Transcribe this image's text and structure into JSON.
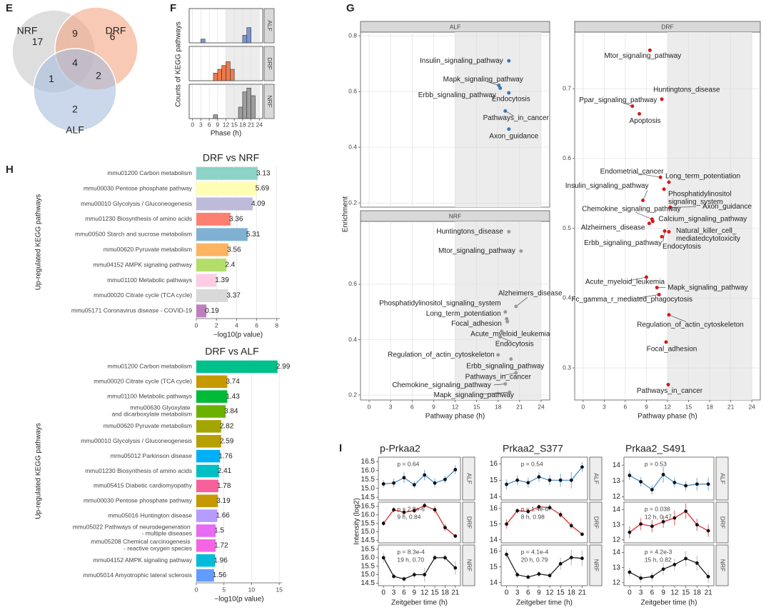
{
  "panels": [
    "E",
    "F",
    "G",
    "H",
    "I"
  ],
  "chart_data": [
    {
      "type": "venn",
      "sets": [
        {
          "name": "NRF",
          "color": "#c8c8c8"
        },
        {
          "name": "DRF",
          "color": "#f4a582"
        },
        {
          "name": "ALF",
          "color": "#a9bcdc"
        }
      ],
      "regions": [
        {
          "sets": [
            "NRF"
          ],
          "value": 17
        },
        {
          "sets": [
            "DRF"
          ],
          "value": 6
        },
        {
          "sets": [
            "ALF"
          ],
          "value": 2
        },
        {
          "sets": [
            "NRF",
            "DRF"
          ],
          "value": 9
        },
        {
          "sets": [
            "NRF",
            "ALF"
          ],
          "value": 1
        },
        {
          "sets": [
            "DRF",
            "ALF"
          ],
          "value": 2
        },
        {
          "sets": [
            "NRF",
            "DRF",
            "ALF"
          ],
          "value": 4
        }
      ]
    },
    {
      "type": "histogram",
      "xlabel": "Phase (h)",
      "ylabel": "Counts of KEGG pathways",
      "xlim": [
        -1.2,
        25.2
      ],
      "xticks": [
        0,
        3,
        6,
        9,
        12,
        15,
        18,
        21,
        24
      ],
      "ylim": [
        0,
        9
      ],
      "shaded": [
        12,
        24
      ],
      "bins": [
        0,
        1.5,
        3,
        4.5,
        6,
        7.5,
        9,
        10.5,
        12,
        13.5,
        15,
        16.5,
        18,
        19.5,
        21,
        22.5,
        24
      ],
      "facets": [
        {
          "name": "ALF",
          "color": "#7b96d4",
          "counts": [
            0,
            0,
            1,
            0,
            0,
            0,
            0,
            0,
            0,
            0,
            0,
            0,
            2,
            4,
            0,
            0
          ]
        },
        {
          "name": "DRF",
          "color": "#ee7a4a",
          "counts": [
            0,
            0,
            0,
            0,
            0,
            2,
            3,
            4,
            5,
            3,
            0,
            0,
            0,
            0,
            0,
            0
          ]
        },
        {
          "name": "NRF",
          "color": "#9e9e9e",
          "counts": [
            0,
            0,
            0,
            0,
            0,
            1,
            0,
            0,
            0,
            0,
            0,
            3,
            7,
            8,
            6,
            0
          ]
        }
      ]
    },
    {
      "type": "scatter",
      "xlabel": "Pathway phase (h)",
      "ylabel": "Enrichment",
      "xlim": [
        -1.2,
        25.2
      ],
      "xticks": [
        0,
        3,
        6,
        9,
        12,
        15,
        18,
        21,
        24
      ],
      "shaded": [
        12,
        24
      ],
      "facets": [
        {
          "name": "ALF",
          "color": "#3a78b8",
          "ylim": [
            0.185,
            0.813
          ],
          "yticks": [
            0.2,
            0.4,
            0.6,
            0.8
          ],
          "labels": [
            "Insulin_signaling_pathway",
            "Mapk_signaling_pathway",
            "Erbb_signaling_pathway",
            "Endocytosis",
            "Pathways_in_cancer",
            "Axon_guidance"
          ],
          "x": [
            19.5,
            18.1,
            18.3,
            19.5,
            19.0,
            19.5
          ],
          "y": [
            0.71,
            0.622,
            0.612,
            0.595,
            0.53,
            0.465
          ]
        },
        {
          "name": "DRF",
          "color": "#d7191c",
          "ylim": [
            0.254,
            0.781
          ],
          "yticks": [
            0.3,
            0.4,
            0.5,
            0.6,
            0.7
          ],
          "labels": [
            "Mtor_signaling_pathway",
            "Huntingtons_disease",
            "Ppar_signaling_pathway",
            "Apoptosis",
            "Endometrial_cancer",
            "Long_term_potentiation",
            "Insulin_signaling_pathway",
            "Phosphatidylinositol signaling_system",
            "Axon_guidance",
            "Chemokine_signaling_pathway",
            "Calcium_signaling_pathway",
            "Natural_killer_cell_ mediatedcytotoxicity",
            "Alzheimers_disease",
            "Erbb_signaling_pathway",
            "Endocytosis",
            "Acute_myeloid_leukemia",
            "Mapk_signaling_pathway",
            "Fc_gamma_r_mediated_phagocytosis",
            "Regulation_of_actin_cytoskeleton",
            "Focal_adhesion",
            "Pathways_in_cancer"
          ],
          "x": [
            9.5,
            11.2,
            7.0,
            8.0,
            11.0,
            12.2,
            8.5,
            11.5,
            12.4,
            9.8,
            9.9,
            12.2,
            9.4,
            11.2,
            11.6,
            9.0,
            10.5,
            10.8,
            12.2,
            11.8,
            12.1
          ],
          "y": [
            0.755,
            0.685,
            0.675,
            0.664,
            0.573,
            0.566,
            0.54,
            0.556,
            0.53,
            0.513,
            0.51,
            0.495,
            0.507,
            0.488,
            0.496,
            0.43,
            0.415,
            0.405,
            0.376,
            0.337,
            0.276
          ]
        },
        {
          "name": "NRF",
          "color": "#9a9a9a",
          "ylim": [
            0.182,
            0.827
          ],
          "yticks": [
            0.2,
            0.4,
            0.6
          ],
          "labels": [
            "Huntingtons_disease",
            "Mtor_signaling_pathway",
            "Alzheimers_disease",
            "Phosphatidylinositol_signaling_system",
            "Long_term_potentiation",
            "Focal_adhesion",
            "Acute_myeloid_leukemia",
            "Endocytosis",
            "Regulation_of_actin_cytoskeleton",
            "Erbb_signaling_pathway",
            "Pathways_in_cancer",
            "Chemokine_signaling_pathway",
            "Mapk_signaling_pathway"
          ],
          "x": [
            19.5,
            21.2,
            20.5,
            19.0,
            19.2,
            19.3,
            18.5,
            18.3,
            18.0,
            19.8,
            20.5,
            19.0,
            19.6
          ],
          "y": [
            0.79,
            0.72,
            0.52,
            0.5,
            0.475,
            0.465,
            0.43,
            0.41,
            0.345,
            0.33,
            0.28,
            0.24,
            0.21
          ]
        }
      ]
    },
    {
      "type": "bar",
      "title": "DRF vs NRF",
      "xlabel": "−log10(p value)",
      "ylabel": "Up-regulated KEGG pathways",
      "xlim": [
        0,
        8.3
      ],
      "xticks": [
        0,
        2,
        4,
        6,
        8
      ],
      "categories": [
        "mmu01200 Carbon metabolism",
        "mmu00030 Pentose phosphate pathway",
        "mmu00010 Glycolysis / Gluconeogenesis",
        "mmu01230 Biosynthesis of amino acids",
        "mmu00500 Starch and sucrose metabolism",
        "mmu00620 Pyruvate metabolism",
        "mmu04152 AMPK signaling pathway",
        "mmu01100 Metabolic pathways",
        "mmu00020 Citrate cycle (TCA cycle)",
        "mmu05171 Coronavirus disease - COVID-19"
      ],
      "values": [
        6.1,
        6.0,
        5.6,
        3.4,
        5.1,
        3.2,
        3.0,
        2.0,
        3.15,
        1.0
      ],
      "annotations": [
        3.13,
        5.69,
        4.09,
        3.36,
        5.31,
        3.56,
        2.4,
        1.39,
        3.37,
        0.19
      ],
      "colors": [
        "#8dd3c7",
        "#ffffb3",
        "#bebada",
        "#fb8072",
        "#80b1d3",
        "#fdb462",
        "#b3de69",
        "#fccde5",
        "#d9d9d9",
        "#bc80bd"
      ]
    },
    {
      "type": "bar",
      "title": "DRF vs ALF",
      "xlabel": "−log10(p value)",
      "ylabel": "Up-regulated KEGG pathways",
      "xlim": [
        0,
        15.5
      ],
      "xticks": [
        0,
        5,
        10,
        15
      ],
      "categories": [
        "mmu01200 Carbon metabolism",
        "mmu00020 Citrate cycle (TCA cycle)",
        "mmu01100 Metabolic pathways",
        "mmu00630 Glyoxylate and dicarboxylate metabolism",
        "mmu00620 Pyruvate metabolism",
        "mmu00010 Glycolysis / Gluconeogenesis",
        "mmu05012 Parkinson disease",
        "mmu01230 Biosynthesis of amino acids",
        "mmu05415 Diabetic cardiomyopathy",
        "mmu00030 Pentose phosphate pathway",
        "mmu05016 Huntington disease",
        "mmu05022 Pathways of neurodegeneration - multiple diseases",
        "mmu05208 Chemical carcinogenesis - reactive oxygen species",
        "mmu04152 AMPK signaling pathway",
        "mmu05014 Amyotrophic lateral sclerosis"
      ],
      "values": [
        14.7,
        5.6,
        5.6,
        5.3,
        4.5,
        4.5,
        4.3,
        4.1,
        4.0,
        3.9,
        3.8,
        3.5,
        3.5,
        3.4,
        3.2
      ],
      "annotations": [
        2.99,
        3.74,
        1.43,
        3.84,
        2.82,
        2.59,
        1.76,
        2.41,
        1.78,
        3.19,
        1.66,
        1.5,
        1.72,
        1.96,
        1.56
      ],
      "colors": [
        "#00c08b",
        "#c49a00",
        "#00ba38",
        "#6bb100",
        "#a3a500",
        "#b79f00",
        "#00b0f6",
        "#00bfc4",
        "#f8609c",
        "#c59900",
        "#b79cff",
        "#e76bf3",
        "#f564e3",
        "#00bcd8",
        "#619cff"
      ]
    },
    {
      "type": "line",
      "xlabel": "Zeitgeber time (h)",
      "ylabel": "Intensity (log2)",
      "x": [
        0,
        3,
        6,
        9,
        12,
        15,
        18,
        21
      ],
      "xlim": [
        -1.5,
        22.5
      ],
      "xticks": [
        0,
        3,
        6,
        9,
        12,
        15,
        18,
        21
      ],
      "columns": [
        {
          "title": "p-Prkaa2",
          "ylim": [
            14.35,
            16.75
          ],
          "yticks": [
            14.5,
            {
              "value": 15,
              "label": "15.0"
            },
            15.5,
            {
              "value": 16,
              "label": "16.0"
            },
            16.5
          ],
          "rows": [
            {
              "name": "ALF",
              "color": "#3a87c8",
              "values": [
                15.25,
                15.3,
                15.6,
                15.2,
                15.75,
                15.3,
                15.5,
                16.05
              ],
              "errors": [
                0.2,
                0.25,
                0.3,
                0.2,
                0.3,
                0.25,
                0.2,
                0.25
              ],
              "annotations": [
                "p = 0.64"
              ]
            },
            {
              "name": "DRF",
              "color": "#d7191c",
              "values": [
                15.5,
                16.3,
                16.15,
                16.25,
                16.55,
                16.3,
                15.25,
                14.75
              ],
              "errors": [
                0.15,
                0.15,
                0.2,
                0.15,
                0.15,
                0.2,
                0.2,
                0.1
              ],
              "annotations": [
                "p = 2.9e-6",
                "9 h, 0.84"
              ]
            },
            {
              "name": "NRF",
              "color": "#111111",
              "values": [
                16.0,
                14.9,
                14.75,
                15.0,
                15.0,
                16.0,
                16.0,
                15.4
              ],
              "errors": [
                0.3,
                0.15,
                0.15,
                0.2,
                0.4,
                0.2,
                0.2,
                0.4
              ],
              "annotations": [
                "p = 8.3e-4",
                "19 h, 0.70"
              ]
            }
          ]
        },
        {
          "title": "Prkaa2_S377",
          "ylim": [
            13.8,
            16.4
          ],
          "yticks": [
            14,
            15,
            16
          ],
          "rows": [
            {
              "name": "ALF",
              "color": "#3a87c8",
              "values": [
                14.75,
                15.0,
                14.85,
                15.2,
                15.0,
                15.0,
                15.0,
                15.8
              ],
              "errors": [
                0.3,
                0.3,
                0.3,
                0.3,
                0.3,
                0.4,
                0.5,
                0.3
              ],
              "annotations": [
                "p = 0.54"
              ]
            },
            {
              "name": "DRF",
              "color": "#d7191c",
              "values": [
                15.0,
                15.85,
                15.8,
                16.1,
                16.05,
                15.6,
                14.9,
                14.35
              ],
              "errors": [
                0.3,
                0.15,
                0.15,
                0.15,
                0.2,
                0.2,
                0.2,
                0.1
              ],
              "annotations": [
                "p = 1.4e-6",
                "8 h, 0.98"
              ]
            },
            {
              "name": "NRF",
              "color": "#111111",
              "values": [
                15.8,
                14.5,
                14.35,
                14.55,
                14.45,
                15.2,
                15.6,
                15.55
              ],
              "errors": [
                0.3,
                0.2,
                0.15,
                0.2,
                0.2,
                0.4,
                0.5,
                0.5
              ],
              "annotations": [
                "p = 4.1e-4",
                "20 h, 0.79"
              ]
            }
          ]
        },
        {
          "title": "Prkaa2_S491",
          "ylim": [
            11.8,
            14.5
          ],
          "yticks": [
            12,
            13,
            14
          ],
          "rows": [
            {
              "name": "ALF",
              "color": "#3a87c8",
              "values": [
                13.35,
                12.95,
                12.45,
                13.4,
                12.9,
                12.7,
                12.8,
                12.8
              ],
              "errors": [
                0.3,
                0.3,
                0.3,
                0.5,
                0.3,
                0.3,
                0.4,
                0.4
              ],
              "annotations": [
                "p = 0.53"
              ]
            },
            {
              "name": "DRF",
              "color": "#d7191c",
              "values": [
                12.5,
                13.05,
                12.9,
                13.2,
                13.45,
                13.9,
                13.0,
                12.6
              ],
              "errors": [
                0.4,
                0.4,
                0.4,
                0.4,
                0.5,
                0.5,
                0.4,
                0.4
              ],
              "annotations": [
                "p = 0.038",
                "12 h, 0.47"
              ]
            },
            {
              "name": "NRF",
              "color": "#111111",
              "values": [
                12.7,
                12.3,
                12.4,
                12.9,
                13.2,
                13.6,
                13.3,
                12.4
              ],
              "errors": [
                0.3,
                0.3,
                0.3,
                0.4,
                0.4,
                0.5,
                0.5,
                0.4
              ],
              "annotations": [
                "p = 4.2e-3",
                "15 h, 0.82"
              ]
            }
          ]
        }
      ]
    }
  ]
}
